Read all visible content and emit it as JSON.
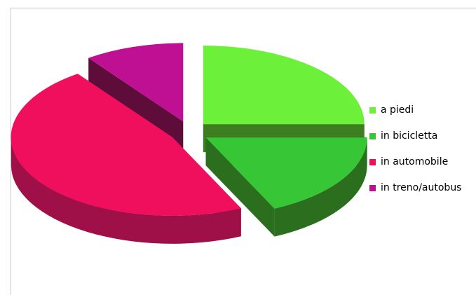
{
  "chart_data": {
    "type": "pie",
    "style": "3d-exploded",
    "categories": [
      "a piedi",
      "in bicicletta",
      "in automobile",
      "in treno/autobus"
    ],
    "values": [
      25,
      18,
      47,
      10
    ],
    "colors": [
      "#6df03a",
      "#36c636",
      "#ef0f5c",
      "#bf0f93"
    ],
    "side_colors": [
      "#3d7f20",
      "#2a6e1e",
      "#a01048",
      "#5e0d3b"
    ],
    "legend_position": "right",
    "title": ""
  }
}
